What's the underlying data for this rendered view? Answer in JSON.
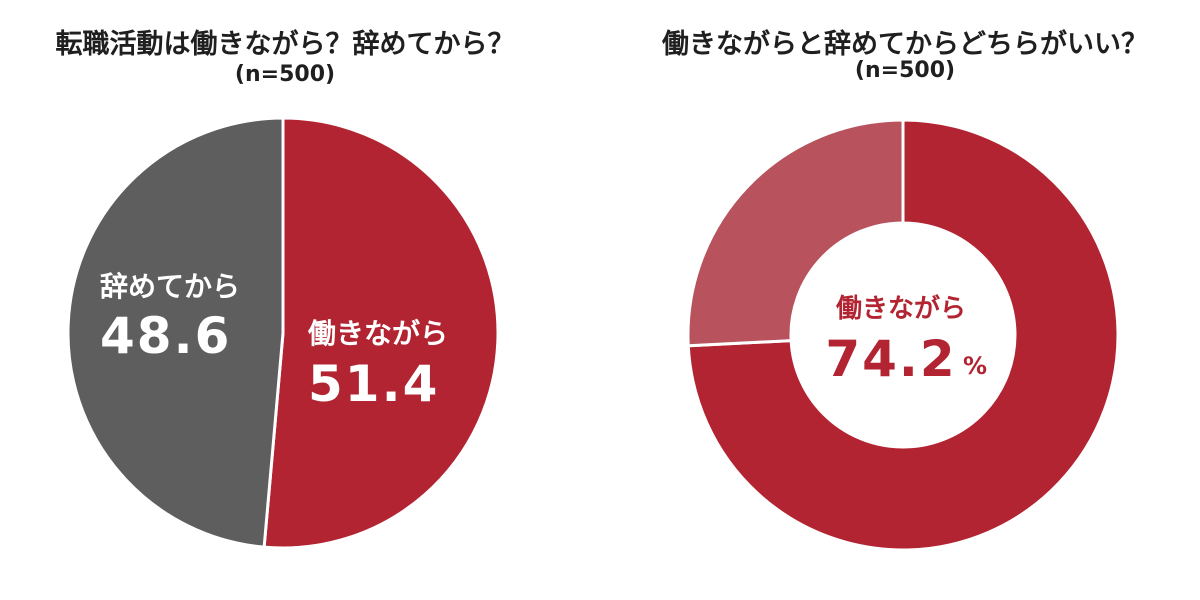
{
  "chart_data": [
    {
      "type": "pie",
      "title": "転職活動は働きながら？辞めてから？",
      "subtitle": "(n=500)",
      "slices": [
        {
          "label": "働きながら",
          "value": 51.4,
          "value_text": "51.4",
          "color": "#b22431"
        },
        {
          "label": "辞めてから",
          "value": 48.6,
          "value_text": "48.6",
          "color": "#5e5e5e"
        }
      ]
    },
    {
      "type": "pie",
      "variant": "donut",
      "title": "働きながらと辞めてからどちらがいい？",
      "subtitle": "(n=500)",
      "slices": [
        {
          "label": "働きながら",
          "value": 74.2,
          "color": "#b22431"
        },
        {
          "label": "",
          "value": 25.8,
          "color": "#b8535e"
        }
      ],
      "center_label": "働きながら",
      "center_value": "74.2",
      "center_unit": "%",
      "center_color": "#b22431"
    }
  ]
}
